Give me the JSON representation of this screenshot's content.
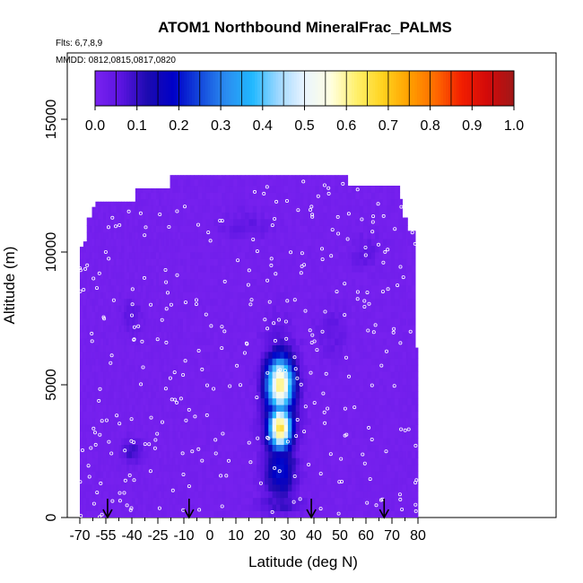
{
  "chart_data": {
    "type": "heatmap",
    "title": "ATOM1 Northbound MineralFrac_PALMS",
    "flights_label": "Flts: 6,7,8,9",
    "dates_label": "MMDD: 0812,0815,0817,0820",
    "xlabel": "Latitude (deg N)",
    "ylabel": "Altitude (m)",
    "xlim": [
      -70,
      85
    ],
    "ylim": [
      0,
      17500
    ],
    "x_tick_labels": [
      "-70",
      "-55",
      "-40",
      "-25",
      "-10",
      "0",
      "10",
      "20",
      "30",
      "40",
      "50",
      "60",
      "70",
      "80"
    ],
    "x_tick_values": [
      -70,
      -55,
      -40,
      -25,
      -10,
      0,
      10,
      20,
      30,
      40,
      50,
      60,
      70,
      80
    ],
    "y_ticks": [
      0,
      5000,
      10000,
      15000
    ],
    "y_tick_labels": [
      "0",
      "5000",
      "10000",
      "15000"
    ],
    "colorbar": {
      "min": 0.0,
      "max": 1.0,
      "tick_labels": [
        "0.0",
        "0.1",
        "0.2",
        "0.3",
        "0.4",
        "0.5",
        "0.6",
        "0.7",
        "0.8",
        "0.9",
        "1.0"
      ],
      "colors": [
        "#7a22f0",
        "#5a14e0",
        "#1c0ab0",
        "#0000c8",
        "#1448dc",
        "#2a8cf0",
        "#20b8ff",
        "#9ed8ff",
        "#eaf4ff",
        "#ffffe0",
        "#fff06a",
        "#ffd21e",
        "#ffa000",
        "#ff6a00",
        "#f21e00",
        "#d20a0a",
        "#a01818"
      ]
    },
    "profile_arrows_lat": [
      -54,
      -8,
      39,
      67
    ],
    "columns": [
      {
        "x0": -70,
        "x1": -68,
        "top": 10200
      },
      {
        "x0": -68,
        "x1": -66,
        "top": 10400
      },
      {
        "x0": -66,
        "x1": -63,
        "top": 11300
      },
      {
        "x0": -63,
        "x1": -61,
        "top": 11700
      },
      {
        "x0": -61,
        "x1": -38,
        "top": 11900
      },
      {
        "x0": -38,
        "x1": -18,
        "top": 12400
      },
      {
        "x0": -18,
        "x1": 53,
        "top": 12900
      },
      {
        "x0": 53,
        "x1": 73,
        "top": 12500
      },
      {
        "x0": 73,
        "x1": 74,
        "top": 12000
      },
      {
        "x0": 74,
        "x1": 76,
        "top": 11300
      },
      {
        "x0": 76,
        "x1": 79,
        "top": 10800
      },
      {
        "x0": 79,
        "x1": 80,
        "top": 6400
      }
    ],
    "features": [
      {
        "lat": 27,
        "alt": 5000,
        "rx": 7,
        "ry": 1400,
        "value": 0.62
      },
      {
        "lat": 27,
        "alt": 3400,
        "rx": 6,
        "ry": 1100,
        "value": 0.66
      },
      {
        "lat": 27,
        "alt": 4200,
        "rx": 8,
        "ry": 2800,
        "value": 0.3
      },
      {
        "lat": 27,
        "alt": 1800,
        "rx": 8,
        "ry": 1500,
        "value": 0.2
      },
      {
        "lat": 27,
        "alt": 500,
        "rx": 12,
        "ry": 500,
        "value": 0.1
      },
      {
        "lat": -40,
        "alt": 2500,
        "rx": 8,
        "ry": 600,
        "value": 0.1
      },
      {
        "lat": -40,
        "alt": 7600,
        "rx": 8,
        "ry": 900,
        "value": 0.06
      },
      {
        "lat": 47,
        "alt": 7000,
        "rx": 8,
        "ry": 1200,
        "value": 0.05
      },
      {
        "lat": 60,
        "alt": 10000,
        "rx": 8,
        "ry": 900,
        "value": 0.05
      },
      {
        "lat": 14,
        "alt": 11000,
        "rx": 12,
        "ry": 700,
        "value": 0.05
      }
    ]
  }
}
